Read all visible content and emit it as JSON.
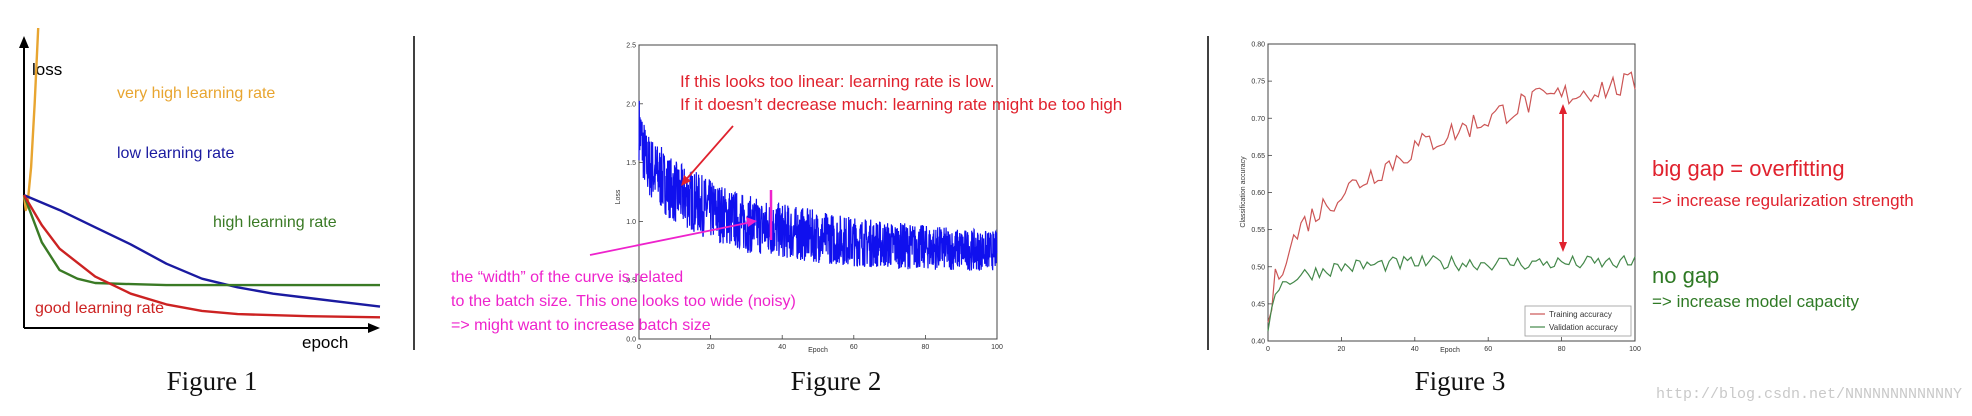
{
  "chart_data": [
    {
      "type": "line",
      "title": "Figure 1",
      "xlabel": "epoch",
      "ylabel": "loss",
      "series": [
        {
          "name": "very high learning rate",
          "color": "#e8a530",
          "points": [
            [
              0,
              0.62
            ],
            [
              0.05,
              0.55
            ],
            [
              0.1,
              0.58
            ],
            [
              0.2,
              0.75
            ],
            [
              0.3,
              1.05
            ],
            [
              0.4,
              1.4
            ]
          ]
        },
        {
          "name": "low learning rate",
          "color": "#1a1aa0",
          "points": [
            [
              0,
              0.62
            ],
            [
              1,
              0.55
            ],
            [
              2,
              0.47
            ],
            [
              3,
              0.39
            ],
            [
              4,
              0.3
            ],
            [
              5,
              0.23
            ],
            [
              6,
              0.19
            ],
            [
              7,
              0.16
            ],
            [
              8,
              0.14
            ],
            [
              9,
              0.12
            ],
            [
              10,
              0.1
            ]
          ]
        },
        {
          "name": "high learning rate",
          "color": "#3a7a25",
          "points": [
            [
              0,
              0.62
            ],
            [
              0.5,
              0.4
            ],
            [
              1,
              0.27
            ],
            [
              1.5,
              0.23
            ],
            [
              2,
              0.21
            ],
            [
              3,
              0.205
            ],
            [
              4,
              0.2
            ],
            [
              6,
              0.2
            ],
            [
              8,
              0.2
            ],
            [
              10,
              0.2
            ]
          ]
        },
        {
          "name": "good learning rate",
          "color": "#cc2222",
          "points": [
            [
              0,
              0.62
            ],
            [
              0.5,
              0.48
            ],
            [
              1,
              0.37
            ],
            [
              2,
              0.24
            ],
            [
              3,
              0.16
            ],
            [
              4,
              0.11
            ],
            [
              5,
              0.08
            ],
            [
              6,
              0.065
            ],
            [
              8,
              0.055
            ],
            [
              10,
              0.05
            ]
          ]
        }
      ]
    },
    {
      "type": "line",
      "title": "Figure 2",
      "xlabel": "Epoch",
      "ylabel": "Loss",
      "xlim": [
        0,
        100
      ],
      "ylim": [
        0.0,
        2.5
      ],
      "xticks": [
        "0",
        "20",
        "40",
        "60",
        "80",
        "100"
      ],
      "yticks": [
        "0.0",
        "0.5",
        "1.0",
        "1.5",
        "2.0",
        "2.5"
      ],
      "series": [
        {
          "color": "#1010ee",
          "trend": {
            "x": [
              0,
              2,
              5,
              10,
              20,
              30,
              40,
              50,
              60,
              70,
              80,
              90,
              100
            ],
            "y": [
              1.8,
              1.5,
              1.4,
              1.25,
              1.1,
              0.98,
              0.92,
              0.87,
              0.83,
              0.8,
              0.78,
              0.76,
              0.75
            ]
          },
          "noise_band": 0.35
        }
      ],
      "annotations": [
        {
          "text": [
            "If this looks too linear: learning rate is low.",
            "If it doesn’t decrease much: learning rate might be too high"
          ],
          "color": "#e0222e"
        },
        {
          "text": [
            "the “width” of the curve is related",
            "to the batch size. This one looks too wide (noisy)",
            "=> might want to increase batch size"
          ],
          "color": "#ee22cc"
        }
      ]
    },
    {
      "type": "line",
      "title": "Figure 3",
      "xlabel": "Epoch",
      "ylabel": "Classification accuracy",
      "xlim": [
        0,
        100
      ],
      "ylim": [
        0.4,
        0.8
      ],
      "xticks": [
        "0",
        "20",
        "40",
        "60",
        "80",
        "100"
      ],
      "yticks": [
        "0.40",
        "0.45",
        "0.50",
        "0.55",
        "0.60",
        "0.65",
        "0.70",
        "0.75",
        "0.80"
      ],
      "legend": "bottom-right",
      "series": [
        {
          "name": "Training accuracy",
          "color": "#cc5555",
          "trend": {
            "x": [
              0,
              2,
              5,
              10,
              20,
              30,
              40,
              50,
              60,
              70,
              80,
              90,
              100
            ],
            "y": [
              0.42,
              0.48,
              0.52,
              0.56,
              0.6,
              0.63,
              0.66,
              0.68,
              0.7,
              0.72,
              0.73,
              0.74,
              0.745
            ]
          },
          "noise_amp": 0.018
        },
        {
          "name": "Validation accuracy",
          "color": "#44884a",
          "trend": {
            "x": [
              0,
              2,
              5,
              10,
              20,
              40,
              60,
              80,
              100
            ],
            "y": [
              0.42,
              0.47,
              0.48,
              0.49,
              0.5,
              0.505,
              0.505,
              0.505,
              0.505
            ]
          },
          "noise_amp": 0.01
        }
      ],
      "annotations": [
        {
          "title": "big gap = overfitting",
          "subtitle": "=> increase regularization strength",
          "color": "#e0222e"
        },
        {
          "title": "no gap",
          "subtitle": "=> increase model capacity",
          "color": "#2f7a25"
        }
      ]
    }
  ],
  "watermark": "http://blog.csdn.net/NNNNNNNNNNNNY"
}
